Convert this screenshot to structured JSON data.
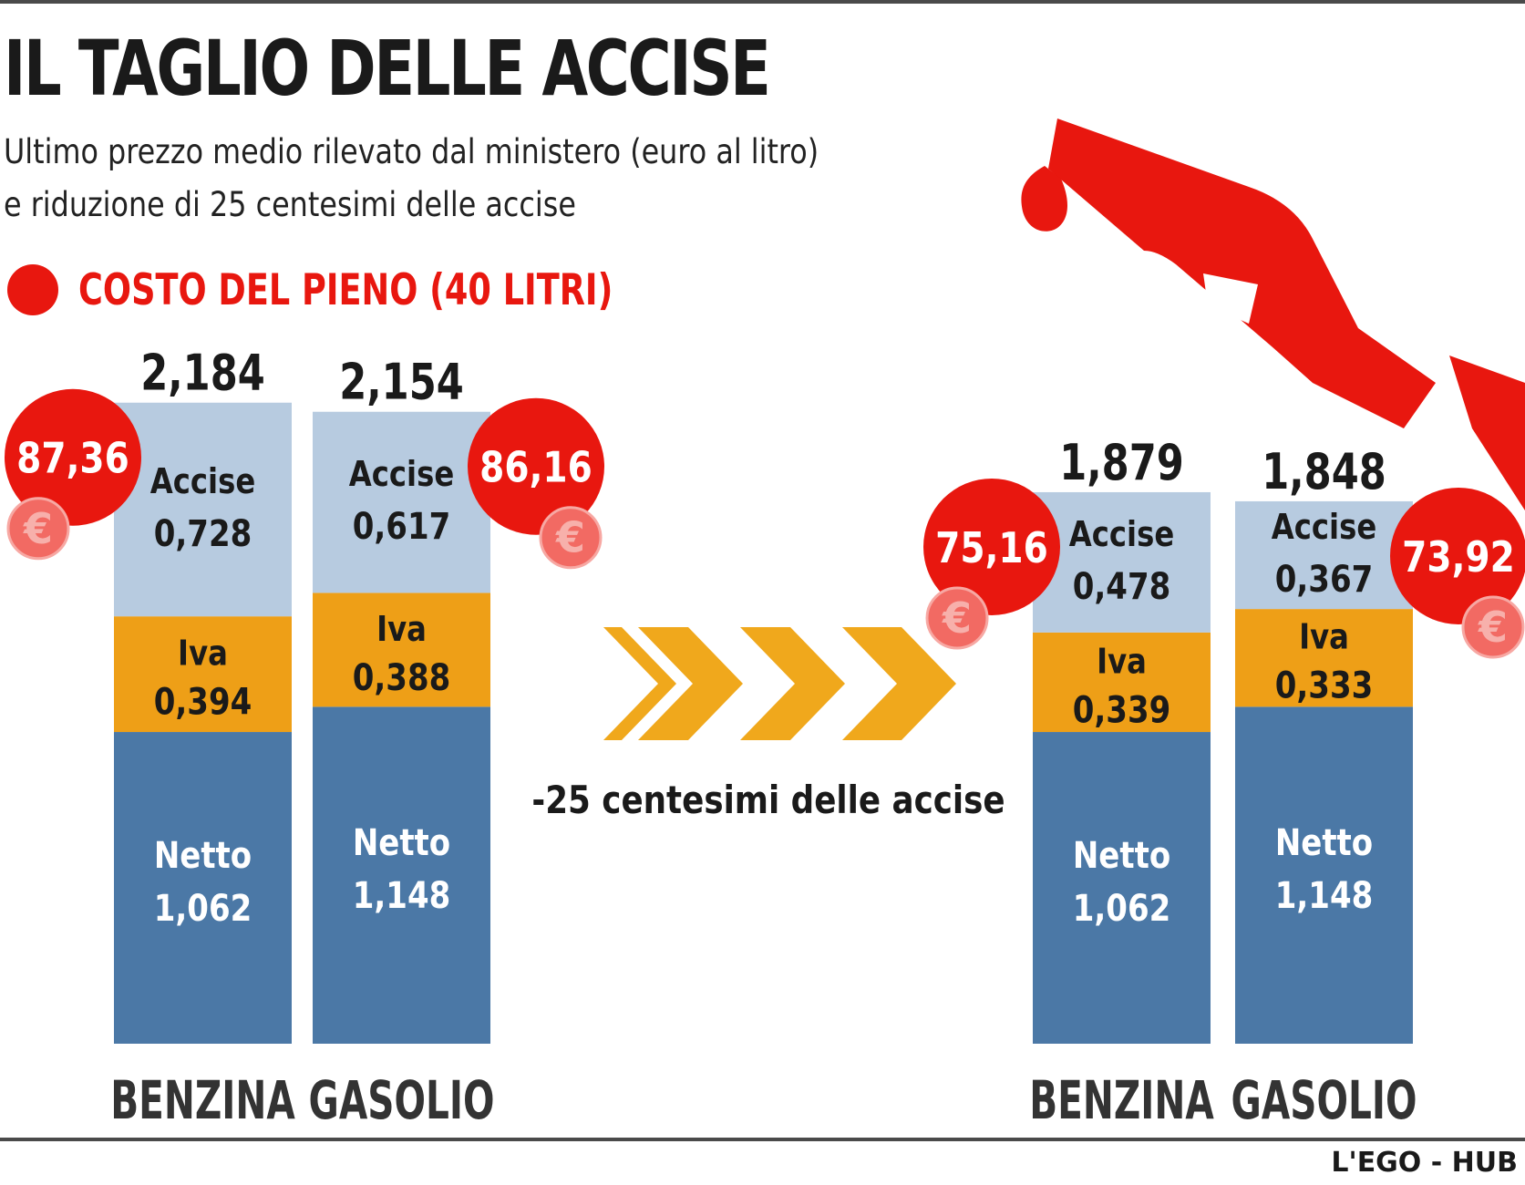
{
  "title": "IL TAGLIO DELLE ACCISE",
  "subtitle_line1": "Ultimo prezzo medio rilevato dal ministero (euro al litro)",
  "subtitle_line2": "e riduzione di 25 centesimi delle accise",
  "legend_label": "COSTO DEL PIENO (40 LITRI)",
  "arrow_caption": "-25 centesimi delle accise",
  "credit": "L'EGO - HUB",
  "euro_symbol": "€",
  "colors": {
    "accise": "#b7cbe0",
    "iva": "#ee9f17",
    "netto": "#4b78a6",
    "accent_red": "#e8170f",
    "chevron": "#f0a81c"
  },
  "chart_data": {
    "type": "bar",
    "stacked": true,
    "unit": "euro al litro",
    "segments": [
      "Netto",
      "Iva",
      "Accise"
    ],
    "groups": [
      {
        "bars": [
          {
            "category": "BENZINA",
            "total": "2,184",
            "netto": 1.062,
            "iva": 0.394,
            "accise": 0.728,
            "netto_label": "1,062",
            "iva_label": "0,394",
            "accise_label": "0,728",
            "pieno": "87,36"
          },
          {
            "category": "GASOLIO",
            "total": "2,154",
            "netto": 1.148,
            "iva": 0.388,
            "accise": 0.617,
            "netto_label": "1,148",
            "iva_label": "0,388",
            "accise_label": "0,617",
            "pieno": "86,16"
          }
        ]
      },
      {
        "bars": [
          {
            "category": "BENZINA",
            "total": "1,879",
            "netto": 1.062,
            "iva": 0.339,
            "accise": 0.478,
            "netto_label": "1,062",
            "iva_label": "0,339",
            "accise_label": "0,478",
            "pieno": "75,16"
          },
          {
            "category": "GASOLIO",
            "total": "1,848",
            "netto": 1.148,
            "iva": 0.333,
            "accise": 0.367,
            "netto_label": "1,148",
            "iva_label": "0,333",
            "accise_label": "0,367",
            "pieno": "73,92"
          }
        ]
      }
    ]
  }
}
